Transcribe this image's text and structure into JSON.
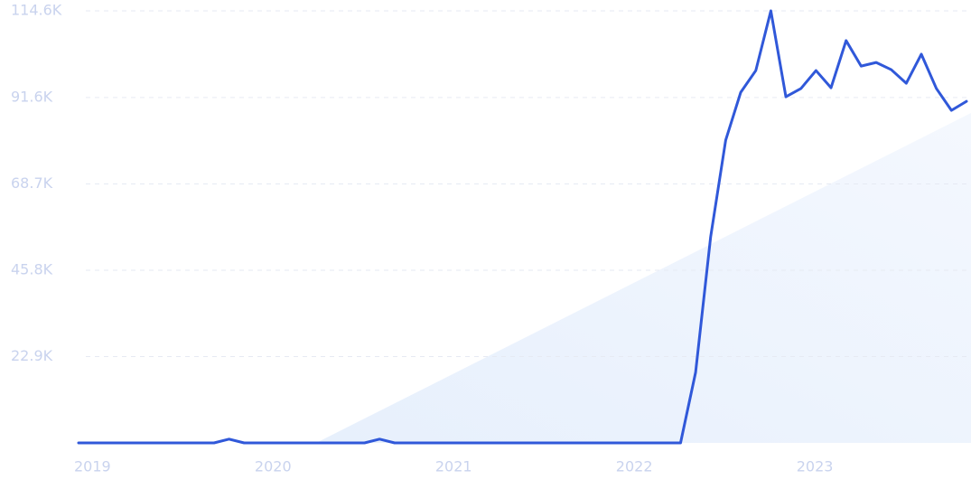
{
  "chart_data": {
    "type": "line",
    "categories": [
      "2019",
      null,
      null,
      null,
      null,
      null,
      null,
      null,
      null,
      null,
      null,
      null,
      "2020",
      null,
      null,
      null,
      null,
      null,
      null,
      null,
      null,
      null,
      null,
      null,
      "2021",
      null,
      null,
      null,
      null,
      null,
      null,
      null,
      null,
      null,
      null,
      null,
      "2022",
      null,
      null,
      null,
      null,
      null,
      null,
      null,
      null,
      null,
      null,
      null,
      "2023",
      null,
      null,
      null,
      null,
      null,
      null,
      null,
      null,
      null,
      null,
      null
    ],
    "series": [
      {
        "color": "#3058d9",
        "values": [
          0,
          0,
          0,
          0,
          0,
          0,
          0,
          0,
          0,
          0,
          1000,
          0,
          0,
          0,
          0,
          0,
          0,
          0,
          0,
          0,
          1000,
          0,
          0,
          0,
          0,
          0,
          0,
          0,
          0,
          0,
          0,
          0,
          0,
          0,
          0,
          0,
          0,
          0,
          0,
          0,
          0,
          18700,
          54650,
          80300,
          93000,
          98760,
          114600,
          91800,
          94000,
          98760,
          94200,
          106700,
          99950,
          100900,
          99000,
          95400,
          103100,
          94000,
          88200,
          90600
        ]
      }
    ],
    "ylim": [
      0,
      114600
    ],
    "yticks": [
      {
        "value": 22900,
        "label": "22.9K"
      },
      {
        "value": 45800,
        "label": "45.8K"
      },
      {
        "value": 68700,
        "label": "68.7K"
      },
      {
        "value": 91600,
        "label": "91.6K"
      },
      {
        "value": 114600,
        "label": "114.6K"
      }
    ],
    "grid": true
  }
}
